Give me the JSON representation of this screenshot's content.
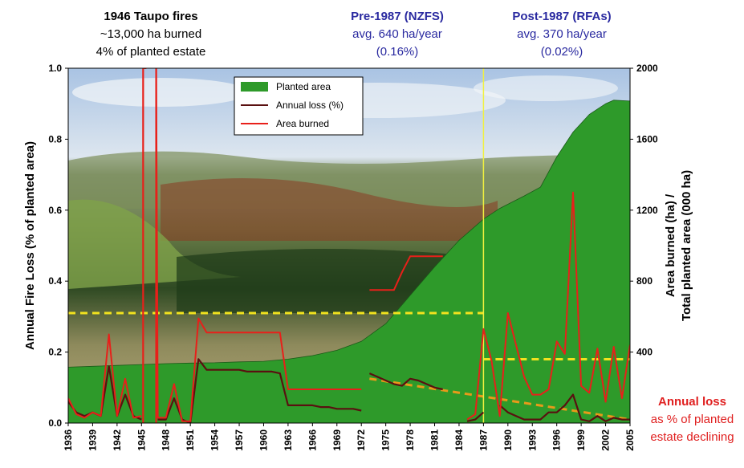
{
  "headers": {
    "left": {
      "title": "1946 Taupo fires",
      "line1": "~13,000 ha burned",
      "line2": "4% of planted estate"
    },
    "mid": {
      "title": "Pre-1987 (NZFS)",
      "line1": "avg. 640 ha/year",
      "line2": "(0.16%)"
    },
    "right": {
      "title": "Post-1987 (RFAs)",
      "line1": "avg. 370 ha/year",
      "line2": "(0.02%)"
    }
  },
  "note": {
    "title": "Annual loss",
    "line1": "as % of planted",
    "line2": "estate declining"
  },
  "colors": {
    "planted": "#2e9a2a",
    "annual_loss": "#5a1010",
    "area_burned": "#e8201a",
    "avg_line": "#f2e21e",
    "trend": "#e89a1a",
    "divider": "#f0f040"
  },
  "chart_data": {
    "type": "line",
    "background": "photograph of a forested landscape",
    "x_ticks": [
      "1936",
      "1939",
      "1942",
      "1945",
      "1948",
      "1951",
      "1954",
      "1957",
      "1960",
      "1963",
      "1966",
      "1969",
      "1972",
      "1975",
      "1978",
      "1981",
      "1984",
      "1987",
      "1990",
      "1993",
      "1996",
      "1999",
      "2002",
      "2005"
    ],
    "xlim": [
      1936,
      2005
    ],
    "y_left": {
      "label": "Annual Fire Loss (% of planted area)",
      "lim": [
        0,
        1.0
      ],
      "ticks": [
        "0.0",
        "0.2",
        "0.4",
        "0.6",
        "0.8",
        "1.0"
      ]
    },
    "y_right": {
      "label_line1": "Area burned (ha) /",
      "label_line2": "Total planted area (000 ha)",
      "lim": [
        0,
        2000
      ],
      "ticks": [
        "400",
        "800",
        "1200",
        "1600",
        "2000"
      ]
    },
    "legend": {
      "placement": "top-center",
      "items": [
        "Planted area",
        "Annual loss (%)",
        "Area burned"
      ]
    },
    "series": [
      {
        "name": "Planted area",
        "kind": "area",
        "axis": "right",
        "x": [
          1936,
          1939,
          1942,
          1945,
          1948,
          1951,
          1954,
          1957,
          1960,
          1963,
          1966,
          1969,
          1972,
          1975,
          1978,
          1981,
          1984,
          1987,
          1989,
          1992,
          1994,
          1996,
          1998,
          2000,
          2002,
          2003,
          2005
        ],
        "y": [
          315,
          320,
          325,
          330,
          335,
          338,
          340,
          345,
          348,
          360,
          380,
          410,
          460,
          560,
          720,
          880,
          1030,
          1150,
          1210,
          1280,
          1330,
          1500,
          1640,
          1740,
          1800,
          1820,
          1815
        ]
      },
      {
        "name": "Annual loss (%)",
        "kind": "line",
        "axis": "left",
        "segments": [
          {
            "x": [
              1936,
              1937,
              1938,
              1939,
              1940,
              1941,
              1942,
              1943,
              1944,
              1945
            ],
            "y": [
              0.06,
              0.03,
              0.02,
              0.03,
              0.02,
              0.16,
              0.02,
              0.08,
              0.02,
              0.01
            ]
          },
          {
            "x": [
              1947,
              1948,
              1949,
              1950,
              1951,
              1952,
              1953,
              1954,
              1955,
              1956,
              1957,
              1958,
              1959,
              1960,
              1961,
              1962,
              1963,
              1964,
              1965,
              1966,
              1967,
              1968,
              1969,
              1970,
              1971,
              1972
            ],
            "y": [
              0.01,
              0.01,
              0.07,
              0.01,
              0.0,
              0.18,
              0.15,
              0.15,
              0.15,
              0.15,
              0.15,
              0.145,
              0.145,
              0.145,
              0.145,
              0.14,
              0.05,
              0.05,
              0.05,
              0.05,
              0.045,
              0.045,
              0.04,
              0.04,
              0.04,
              0.035
            ]
          },
          {
            "x": [
              1973,
              1974,
              1975,
              1976,
              1977,
              1978,
              1979,
              1980,
              1981,
              1982
            ],
            "y": [
              0.14,
              0.13,
              0.12,
              0.11,
              0.105,
              0.125,
              0.12,
              0.11,
              0.1,
              0.095
            ]
          },
          {
            "x": [
              1985,
              1986,
              1987
            ],
            "y": [
              0.005,
              0.01,
              0.03
            ]
          },
          {
            "x": [
              1989,
              1990,
              1991,
              1992,
              1993,
              1994,
              1995,
              1996,
              1997,
              1998,
              1999,
              2000,
              2001,
              2002,
              2003,
              2004,
              2005
            ],
            "y": [
              0.05,
              0.03,
              0.02,
              0.01,
              0.01,
              0.01,
              0.03,
              0.03,
              0.05,
              0.08,
              0.01,
              0.005,
              0.02,
              0.005,
              0.015,
              0.01,
              0.01
            ]
          }
        ]
      },
      {
        "name": "Area burned",
        "kind": "line",
        "axis": "right",
        "segments": [
          {
            "x": [
              1936,
              1937,
              1938,
              1939,
              1940,
              1941,
              1942,
              1943,
              1944,
              1945
            ],
            "y": [
              140,
              50,
              30,
              60,
              40,
              500,
              40,
              250,
              30,
              40
            ]
          },
          {
            "x": [
              1945.2,
              1945.6
            ],
            "y": [
              2000,
              2000
            ]
          },
          {
            "x": [
              1946.8,
              1947,
              1948,
              1949,
              1950,
              1951,
              1952,
              1953,
              1954,
              1955,
              1956,
              1957,
              1958,
              1959,
              1960,
              1961,
              1962,
              1963,
              1964,
              1965,
              1966,
              1967,
              1968,
              1969,
              1970,
              1971,
              1972
            ],
            "y": [
              2000,
              30,
              30,
              220,
              10,
              10,
              590,
              510,
              510,
              510,
              510,
              510,
              510,
              510,
              510,
              510,
              510,
              190,
              190,
              190,
              190,
              190,
              190,
              190,
              190,
              190,
              190
            ]
          },
          {
            "x": [
              1973,
              1974,
              1975,
              1976,
              1977,
              1978,
              1979,
              1980,
              1981,
              1982
            ],
            "y": [
              750,
              750,
              750,
              750,
              850,
              940,
              940,
              940,
              940,
              940
            ]
          },
          {
            "x": [
              1985,
              1986,
              1987,
              1988,
              1989,
              1990,
              1991,
              1992,
              1993,
              1994,
              1995,
              1996,
              1997,
              1998,
              1999,
              2000,
              2001,
              2002,
              2003,
              2004,
              2005
            ],
            "y": [
              20,
              50,
              530,
              350,
              40,
              620,
              440,
              260,
              160,
              160,
              190,
              460,
              390,
              1300,
              210,
              170,
              420,
              120,
              430,
              140,
              440
            ]
          }
        ]
      },
      {
        "name": "Pre-1987 average",
        "kind": "hline",
        "axis": "left",
        "y": 0.31,
        "x_range": [
          1936,
          1987
        ]
      },
      {
        "name": "Post-1987 average",
        "kind": "hline",
        "axis": "left",
        "y": 0.18,
        "x_range": [
          1987,
          2005
        ]
      },
      {
        "name": "Annual loss trend",
        "kind": "trend",
        "axis": "left",
        "x": [
          1973,
          2005
        ],
        "y": [
          0.125,
          0.01
        ]
      },
      {
        "name": "1987 divider",
        "kind": "vline",
        "x": 1987
      }
    ]
  }
}
